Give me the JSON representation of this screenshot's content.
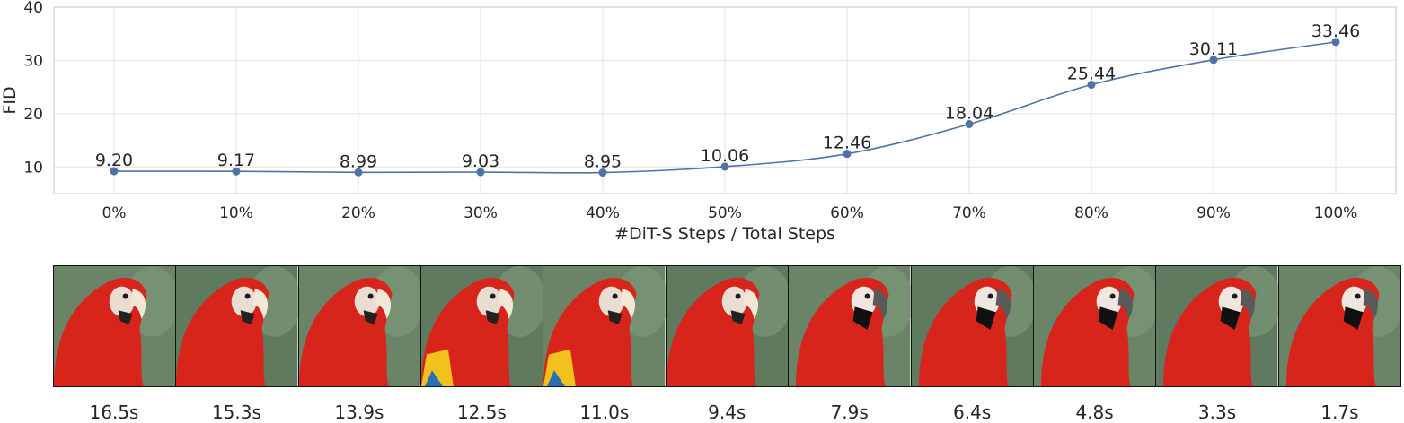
{
  "chart_data": {
    "type": "line",
    "title": "",
    "xlabel": "#DiT-S Steps / Total Steps",
    "ylabel": "FID",
    "categories": [
      "0%",
      "10%",
      "20%",
      "30%",
      "40%",
      "50%",
      "60%",
      "70%",
      "80%",
      "90%",
      "100%"
    ],
    "series": [
      {
        "values": [
          9.2,
          9.17,
          8.99,
          9.03,
          8.95,
          10.06,
          12.46,
          18.04,
          25.44,
          30.11,
          33.46
        ],
        "labels": [
          "9.20",
          "9.17",
          "8.99",
          "9.03",
          "8.95",
          "10.06",
          "12.46",
          "18.04",
          "25.44",
          "30.11",
          "33.46"
        ],
        "color": "#4c72a6"
      }
    ],
    "ylim": [
      5,
      40
    ],
    "yticks": [
      "10",
      "20",
      "30",
      "40"
    ],
    "grid": true
  },
  "images": {
    "subject": "scarlet macaw",
    "times": [
      "16.5s",
      "15.3s",
      "13.9s",
      "12.5s",
      "11.0s",
      "9.4s",
      "7.9s",
      "6.4s",
      "4.8s",
      "3.3s",
      "1.7s"
    ]
  }
}
